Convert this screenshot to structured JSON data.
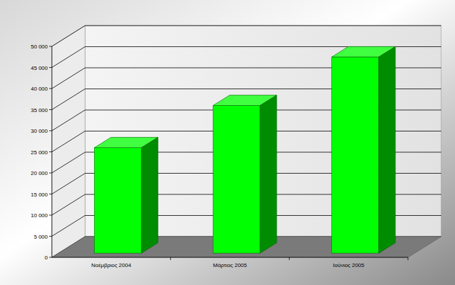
{
  "chart_data": {
    "type": "bar",
    "categories": [
      "Νοέμβριος 2004",
      "Μάρτιος 2005",
      "Ιούνιος 2005"
    ],
    "values": [
      25000,
      35000,
      46500
    ],
    "color": "#00ff00",
    "ylim": [
      0,
      50000
    ],
    "yticks": [
      0,
      {
        "value": 5000,
        "label": "5 000"
      },
      {
        "value": 10000,
        "label": "10 000"
      },
      {
        "value": 15000,
        "label": "15 000"
      },
      {
        "value": 20000,
        "label": "20 000"
      },
      {
        "value": 25000,
        "label": "25 000"
      },
      {
        "value": 30000,
        "label": "30 000"
      },
      {
        "value": 35000,
        "label": "35 000"
      },
      {
        "value": 40000,
        "label": "40 000"
      },
      {
        "value": 45000,
        "label": "45 000"
      },
      {
        "value": 50000,
        "label": "50 000"
      }
    ],
    "grid": true
  }
}
